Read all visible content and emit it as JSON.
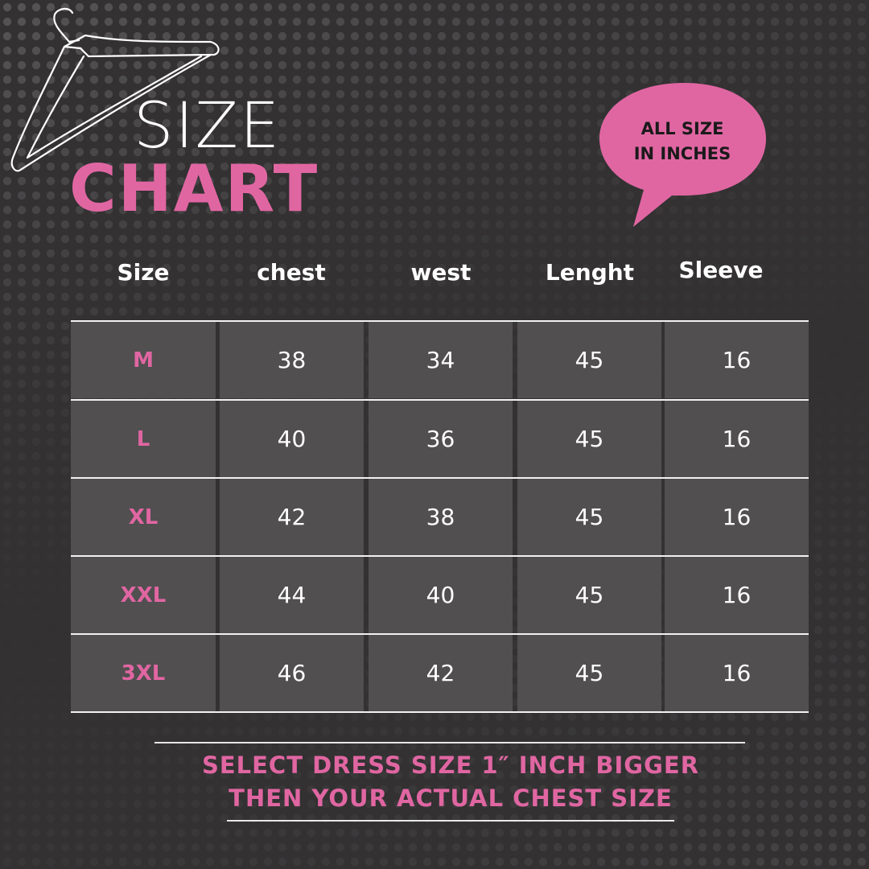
{
  "title": {
    "line1": "SIZE",
    "line2": "CHART"
  },
  "badge": {
    "line1": "ALL SIZE",
    "line2": "IN INCHES"
  },
  "table": {
    "headers": [
      "Size",
      "chest",
      "west",
      "Lenght",
      "Sleeve"
    ],
    "rows": [
      [
        "M",
        "38",
        "34",
        "45",
        "16"
      ],
      [
        "L",
        "40",
        "36",
        "45",
        "16"
      ],
      [
        "XL",
        "42",
        "38",
        "45",
        "16"
      ],
      [
        "XXL",
        "44",
        "40",
        "45",
        "16"
      ],
      [
        "3XL",
        "46",
        "42",
        "45",
        "16"
      ]
    ]
  },
  "note": {
    "line1": "SELECT DRESS SIZE 1″ INCH BIGGER",
    "line2": "THEN YOUR ACTUAL CHEST SIZE"
  },
  "colors": {
    "accent": "#e066a2",
    "background": "#333132",
    "cell": "#514f50"
  },
  "icons": [
    "hanger-icon",
    "speech-bubble"
  ]
}
